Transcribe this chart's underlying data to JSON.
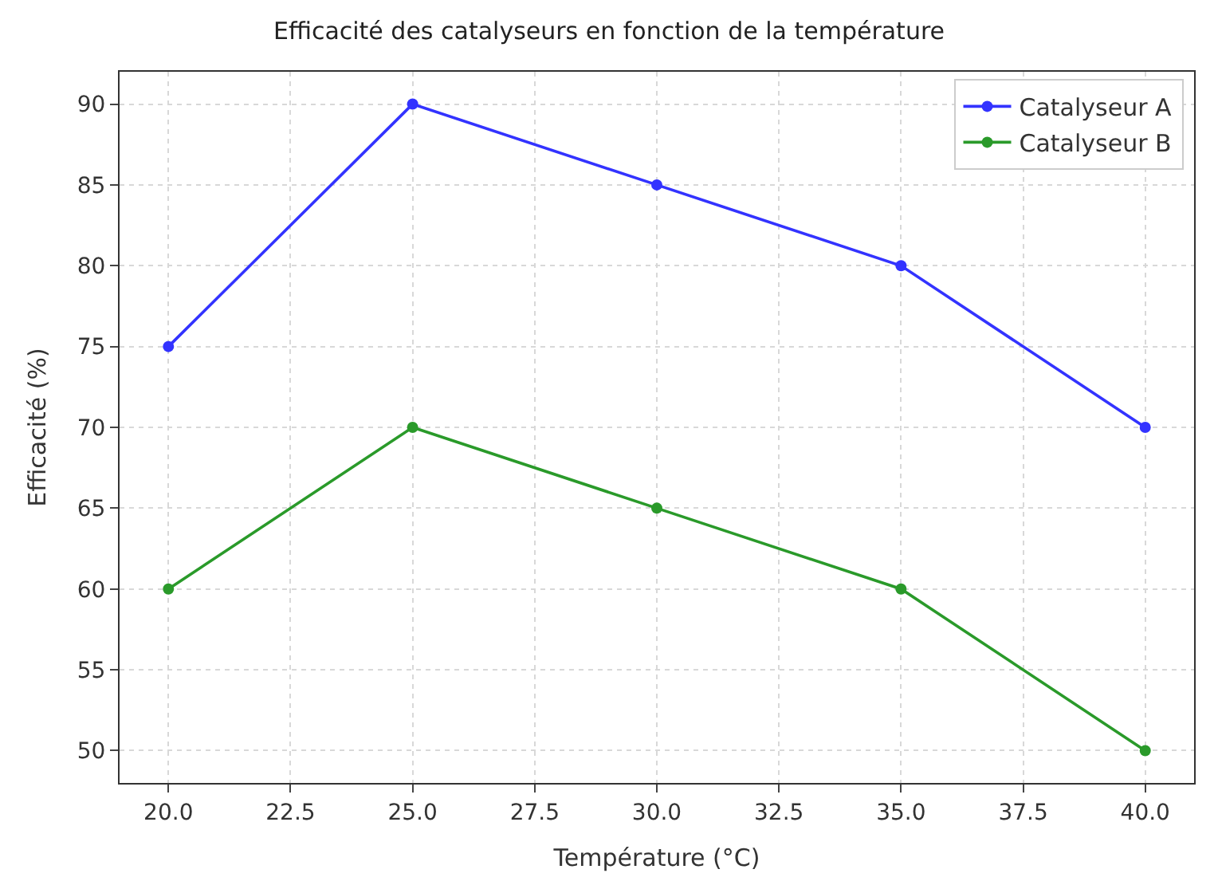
{
  "chart_data": {
    "type": "line",
    "title": "Efficacité des catalyseurs en fonction de la température",
    "xlabel": "Température (°C)",
    "ylabel": "Efficacité (%)",
    "x": [
      20,
      25,
      30,
      35,
      40
    ],
    "series": [
      {
        "name": "Catalyseur A",
        "color": "#3333ff",
        "values": [
          75,
          90,
          85,
          80,
          70
        ]
      },
      {
        "name": "Catalyseur B",
        "color": "#2a9a2a",
        "values": [
          60,
          70,
          65,
          60,
          50
        ]
      }
    ],
    "xlim": [
      19,
      41
    ],
    "xticks": [
      {
        "value": 20,
        "label": "20.0"
      },
      {
        "value": 22.5,
        "label": "22.5"
      },
      {
        "value": 25,
        "label": "25.0"
      },
      {
        "value": 27.5,
        "label": "27.5"
      },
      {
        "value": 30,
        "label": "30.0"
      },
      {
        "value": 32.5,
        "label": "32.5"
      },
      {
        "value": 35,
        "label": "35.0"
      },
      {
        "value": 37.5,
        "label": "37.5"
      },
      {
        "value": 40,
        "label": "40.0"
      }
    ],
    "ylim": [
      48,
      92
    ],
    "yticks": [
      50,
      55,
      60,
      65,
      70,
      75,
      80,
      85,
      90
    ],
    "grid": true,
    "legend": "top right",
    "marker": "circle",
    "line_style": "solid"
  }
}
